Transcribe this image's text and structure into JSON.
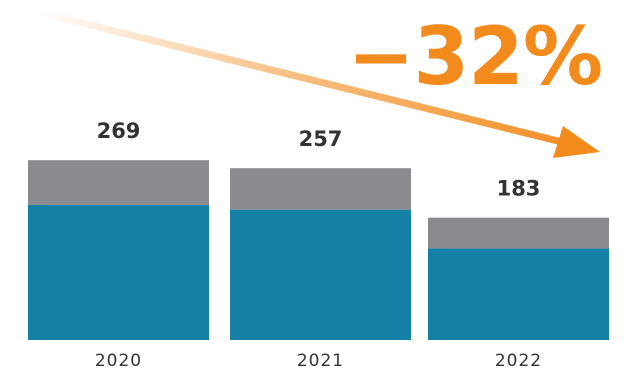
{
  "chart_data": {
    "type": "bar",
    "stacked": true,
    "categories": [
      "2020",
      "2021",
      "2022"
    ],
    "totals": [
      "269",
      "257",
      "183"
    ],
    "series": [
      {
        "values": [
          202,
          195,
          137
        ],
        "color": "#1480a5"
      },
      {
        "values": [
          67,
          62,
          46
        ],
        "color": "#8a8b8e"
      }
    ],
    "ylim": [
      0,
      290
    ],
    "grid": false,
    "legend": "none",
    "annotation": {
      "text": "−32%",
      "color": "#f28a1c",
      "arrow": "decreasing trend arrow"
    }
  }
}
